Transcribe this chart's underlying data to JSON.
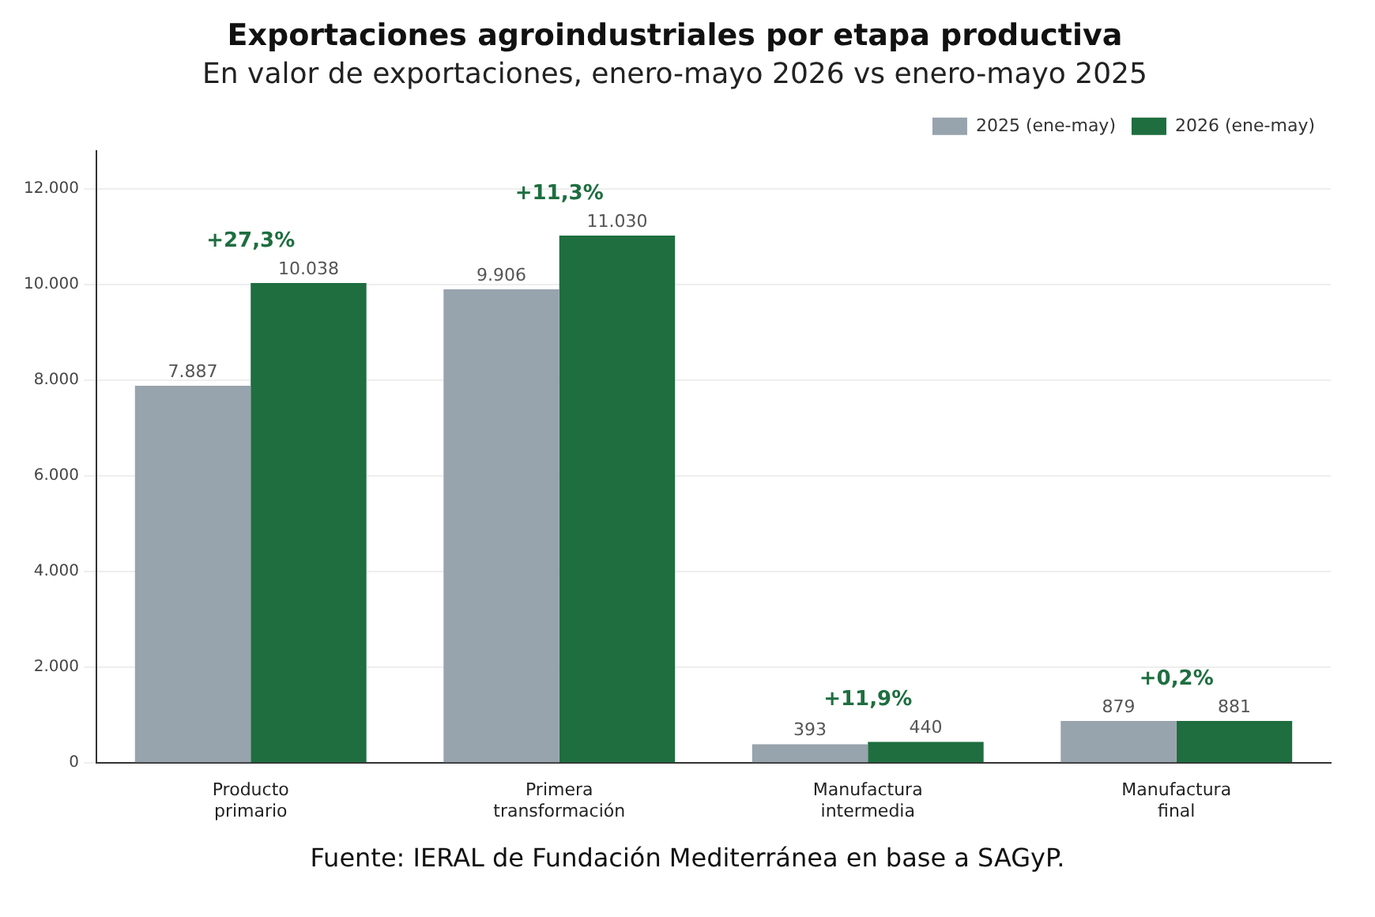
{
  "chart_data": {
    "type": "bar",
    "title": "Exportaciones agroindustriales por etapa productiva",
    "subtitle": "En valor de exportaciones, enero-mayo 2026 vs enero-mayo 2025",
    "categories": [
      "Producto primario",
      "Primera transformación",
      "Manufactura intermedia",
      "Manufactura final"
    ],
    "series": [
      {
        "name": "2025 (ene-may)",
        "color": "#97a3ad",
        "values": [
          7887,
          9906,
          393,
          879
        ],
        "value_labels": [
          "7.887",
          "9.906",
          "393",
          "879"
        ]
      },
      {
        "name": "2026 (ene-may)",
        "color": "#1e6e40",
        "values": [
          10038,
          11030,
          440,
          881
        ],
        "value_labels": [
          "10.038",
          "11.030",
          "440",
          "881"
        ]
      }
    ],
    "ylim": [
      0,
      12800
    ],
    "yticks": [
      {
        "value": 0,
        "label": "0"
      },
      {
        "value": 2000,
        "label": "2.000"
      },
      {
        "value": 4000,
        "label": "4.000"
      },
      {
        "value": 6000,
        "label": "6.000"
      },
      {
        "value": 8000,
        "label": "8.000"
      },
      {
        "value": 10000,
        "label": "10.000"
      },
      {
        "value": 12000,
        "label": "12.000"
      }
    ],
    "grid": "y",
    "legend": "top right",
    "annotations": [
      {
        "text": "+27,3%",
        "x": "Producto primario",
        "y": 10038
      },
      {
        "text": "+11,3%",
        "x": "Primera transformación",
        "y": 11030
      },
      {
        "text": "+11,9%",
        "x": "Manufactura intermedia",
        "y": 440
      },
      {
        "text": "+0,2%",
        "x": "Manufactura final",
        "y": 881
      },
      "Fuente: IERAL de Fundación Mediterránea en base a SAGyP."
    ]
  }
}
